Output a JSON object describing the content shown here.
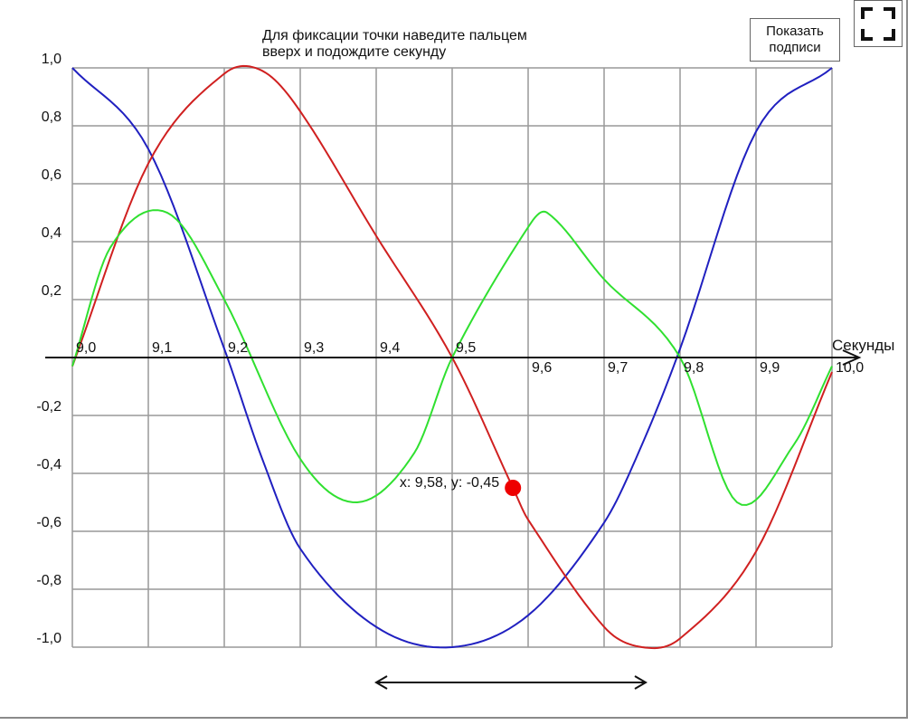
{
  "hint_text": "Для фиксации точки наведите пальцем\nвверх и подождите секунду",
  "show_labels_button": "Показать\nподписи",
  "fullscreen_icon": "fullscreen-icon",
  "pan_icon": "double-arrow-icon",
  "chart_data": {
    "type": "line",
    "xlabel": "Секунды",
    "ylabel": "",
    "xlim": [
      9.0,
      10.0
    ],
    "ylim": [
      -1.0,
      1.0
    ],
    "grid": true,
    "x_ticks": [
      "9,0",
      "9,1",
      "9,2",
      "9,3",
      "9,4",
      "9,5",
      "9,6",
      "9,7",
      "9,8",
      "9,9",
      "10,0"
    ],
    "y_ticks": [
      "1,0",
      "0,8",
      "0,6",
      "0,4",
      "0,2",
      "-0,2",
      "-0,4",
      "-0,6",
      "-0,8",
      "-1,0"
    ],
    "series": [
      {
        "color": "#2020c0",
        "x": [
          9.0,
          9.1,
          9.2,
          9.25,
          9.3,
          9.4,
          9.5,
          9.6,
          9.7,
          9.75,
          9.8,
          9.9,
          10.0
        ],
        "y": [
          1.0,
          0.72,
          0.03,
          -0.35,
          -0.66,
          -0.93,
          -1.0,
          -0.89,
          -0.57,
          -0.3,
          0.03,
          0.78,
          1.0
        ]
      },
      {
        "color": "#d02020",
        "x": [
          9.0,
          9.1,
          9.2,
          9.25,
          9.3,
          9.4,
          9.5,
          9.58,
          9.6,
          9.7,
          9.75,
          9.8,
          9.9,
          10.0
        ],
        "y": [
          -0.03,
          0.67,
          0.98,
          0.99,
          0.85,
          0.42,
          0.0,
          -0.45,
          -0.56,
          -0.93,
          -1.0,
          -0.97,
          -0.67,
          -0.05
        ]
      },
      {
        "color": "#30e030",
        "x": [
          9.0,
          9.05,
          9.125,
          9.2,
          9.3,
          9.375,
          9.45,
          9.5,
          9.6,
          9.625,
          9.7,
          9.8,
          9.875,
          9.95,
          10.0
        ],
        "y": [
          -0.03,
          0.38,
          0.5,
          0.2,
          -0.35,
          -0.5,
          -0.33,
          0.0,
          0.45,
          0.5,
          0.27,
          0.0,
          -0.5,
          -0.3,
          -0.03
        ]
      }
    ],
    "marker": {
      "x": 9.58,
      "y": -0.45,
      "label": "x: 9,58, y: -0,45",
      "color": "#ee0000"
    }
  }
}
